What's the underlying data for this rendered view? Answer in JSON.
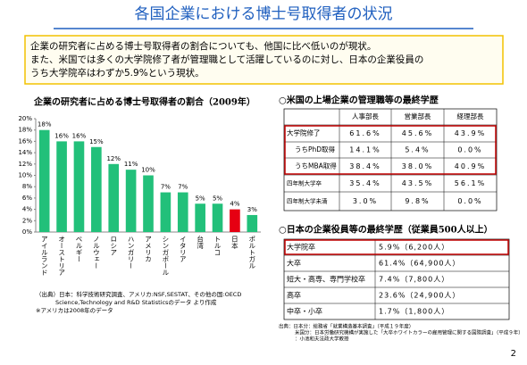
{
  "header": {
    "title": "各国企業における博士号取得者の状況"
  },
  "summary": [
    "企業の研究者に占める博士号取得者の割合についても、他国に比べ低いのが現状。",
    "また、米国では多くの大学院修了者が管理職として活躍しているのに対し、日本の企業役員の",
    "うち大学院卒はわずか5.9%という現状。"
  ],
  "chart_data": {
    "type": "bar",
    "title": "企業の研究者に占める博士号取得者の割合（2009年）",
    "categories": [
      "アイルランド",
      "オーストリア",
      "ベルギー",
      "ノルウェー",
      "ロシア",
      "ハンガリー",
      "アメリカ",
      "シンガポール",
      "イタリア",
      "台湾",
      "トルコ",
      "日本",
      "ポルトガル"
    ],
    "values": [
      18,
      16,
      16,
      15,
      12,
      11,
      10,
      7,
      7,
      5,
      5,
      4,
      3
    ],
    "value_labels": [
      "18%",
      "16%",
      "16%",
      "15%",
      "12%",
      "11%",
      "10%",
      "7%",
      "7%",
      "5%",
      "5%",
      "4%",
      "3%"
    ],
    "colors": [
      "#22c07a",
      "#22c07a",
      "#22c07a",
      "#22c07a",
      "#22c07a",
      "#22c07a",
      "#22c07a",
      "#22c07a",
      "#22c07a",
      "#22c07a",
      "#22c07a",
      "#e60012",
      "#22c07a"
    ],
    "ylim": [
      0,
      20
    ],
    "yticks": [
      {
        "value": 0,
        "label": "0%"
      },
      {
        "value": 2,
        "label": "2%"
      },
      {
        "value": 4,
        "label": "4%"
      },
      {
        "value": 6,
        "label": "6%"
      },
      {
        "value": 8,
        "label": "8%"
      },
      {
        "value": 10,
        "label": "10%"
      },
      {
        "value": 12,
        "label": "12%"
      },
      {
        "value": 14,
        "label": "14%"
      },
      {
        "value": 16,
        "label": "16%"
      },
      {
        "value": 18,
        "label": "18%"
      },
      {
        "value": 20,
        "label": "20%"
      }
    ],
    "grid": false,
    "notes": [
      "（出典）日本：科学技術研究調査、アメリカ:NSF,SESTAT、その他の国:OECD",
      "Science,Technology and R&D Statisticsのデータ より作成",
      "※アメリカは2008年のデータ"
    ]
  },
  "us_table": {
    "title": "○米国の上場企業の管理職等の最終学歴",
    "columns": [
      "人事部長",
      "営業部長",
      "経理部長"
    ],
    "rows": [
      {
        "label": "大学院修了",
        "cells": [
          "61.6%",
          "45.6%",
          "43.9%"
        ]
      },
      {
        "label": "うちPhD取得",
        "cells": [
          "14.1%",
          "5.4%",
          "0.0%"
        ]
      },
      {
        "label": "うちMBA取得",
        "cells": [
          "38.4%",
          "38.0%",
          "40.9%"
        ]
      },
      {
        "label": "四年制大学卒",
        "cells": [
          "35.4%",
          "43.5%",
          "56.1%"
        ]
      },
      {
        "label": "四年制大学未満",
        "cells": [
          "3.0%",
          "9.8%",
          "0.0%"
        ]
      }
    ]
  },
  "jp_table": {
    "title": "○日本の企業役員等の最終学歴（従業員500人以上）",
    "rows": [
      {
        "label": "大学院卒",
        "value": "5.9%（6,200人）"
      },
      {
        "label": "大卒",
        "value": "61.4%（64,900人）"
      },
      {
        "label": "短大・高専、専門学校卒",
        "value": "7.4%（7,800人）"
      },
      {
        "label": "高卒",
        "value": "23.6%（24,900人）"
      },
      {
        "label": "中卒・小卒",
        "value": "1.7%（1,800人）"
      }
    ]
  },
  "source": [
    "出典：日本分：総務省「就業構造基本調査」（平成１９年度）",
    "米国分：日本労働研究機構が実施した「大卒ホワイトカラーの雇用管理に関する国際調査」（平成９年）",
    "：小池和夫法政大学教授"
  ],
  "page_number": "2"
}
